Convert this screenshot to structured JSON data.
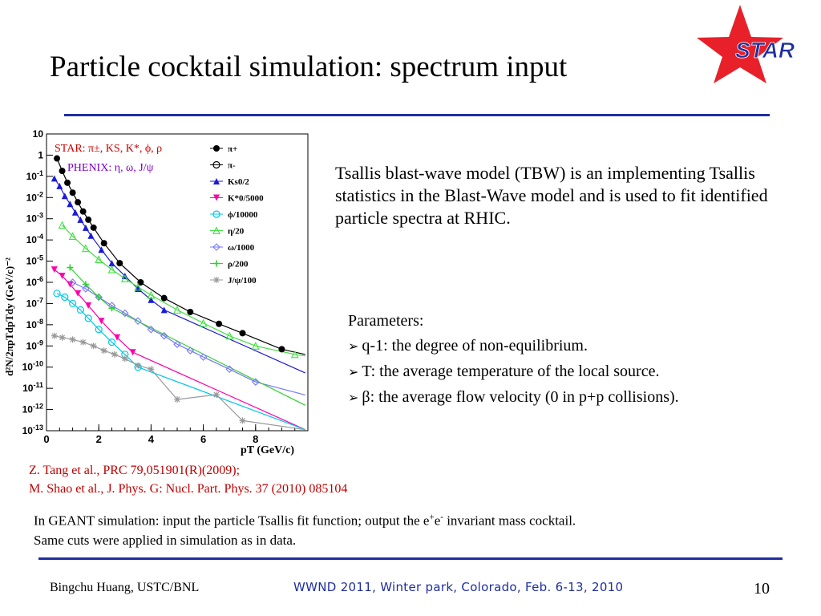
{
  "slide": {
    "title": "Particle cocktail simulation: spectrum input",
    "logo_text": "STAR",
    "description": "Tsallis blast-wave model (TBW) is an implementing Tsallis statistics in the Blast-Wave model and is used to fit identified particle spectra at RHIC.",
    "parameters_heading": "Parameters:",
    "parameters": [
      "q-1: the degree of non-equilibrium.",
      "T: the average temperature of the local source.",
      "β: the average flow velocity (0 in p+p collisions)."
    ],
    "references": [
      "Z. Tang et al., PRC 79,051901(R)(2009);",
      "M. Shao et al.,  J. Phys. G: Nucl. Part. Phys. 37 (2010) 085104"
    ],
    "note_line1_a": "In GEANT simulation: input  the particle Tsallis fit function; output the e",
    "note_line1_sup1": "+",
    "note_line1_b": "e",
    "note_line1_sup2": "-",
    "note_line1_c": "  invariant mass cocktail.",
    "note_line2": "Same cuts were applied in simulation as in data.",
    "footer_author": "Bingchu Huang, USTC/BNL",
    "footer_conference": "WWND 2011, Winter park, Colorado, Feb. 6-13, 2010",
    "page_number": "10",
    "colors": {
      "rule": "#1f2e9e",
      "reference": "#c00000",
      "star_red": "#e8202a",
      "star_text": "#1f2e9e"
    }
  },
  "chart_data": {
    "type": "scatter",
    "title": "",
    "xlabel": "pT (GeV/c)",
    "ylabel": "d²N/2πpTdpTdy  (GeV/c)⁻²",
    "xlim": [
      0,
      10
    ],
    "ylim_log10": [
      -13,
      1
    ],
    "log_y": true,
    "x_ticks": [
      "0",
      "2",
      "4",
      "6",
      "8"
    ],
    "y_ticks": [
      "10",
      "1",
      "10-1",
      "10-2",
      "10-3",
      "10-4",
      "10-5",
      "10-6",
      "10-7",
      "10-8",
      "10-9",
      "10-10",
      "10-11",
      "10-12",
      "10-13"
    ],
    "annotations": [
      "STAR: π±, KS, K*, ϕ, ρ",
      "PHENIX: η, ω, J/ψ"
    ],
    "legend_position": "top-right",
    "series": [
      {
        "name": "π+",
        "color": "#000000",
        "marker": "filled-circle",
        "x": [
          0.4,
          0.6,
          0.8,
          1.0,
          1.2,
          1.4,
          1.6,
          1.8,
          2.2,
          2.8,
          3.6,
          4.5,
          5.5,
          6.6,
          7.5,
          9.0
        ],
        "y": [
          0.7,
          0.18,
          0.05,
          0.017,
          0.006,
          0.0022,
          0.0009,
          0.00038,
          7e-05,
          8e-06,
          1e-06,
          1.8e-07,
          4e-08,
          1.1e-08,
          4e-09,
          7e-10
        ]
      },
      {
        "name": "Ks0/2",
        "color": "#1a1ad6",
        "marker": "filled-triangle",
        "x": [
          0.3,
          0.5,
          0.7,
          0.9,
          1.1,
          1.3,
          1.5,
          1.7,
          2.1,
          2.5,
          3.0,
          3.5,
          4.0,
          4.5
        ],
        "y": [
          0.08,
          0.035,
          0.012,
          0.005,
          0.002,
          0.0009,
          0.00038,
          0.00016,
          3.5e-05,
          8e-06,
          2e-06,
          5e-07,
          1.5e-07,
          5e-08
        ]
      },
      {
        "name": "K*0/5000",
        "color": "#ff00aa",
        "marker": "filled-triangle-down",
        "x": [
          0.3,
          0.6,
          0.9,
          1.2,
          1.6,
          2.1,
          2.7,
          3.3
        ],
        "y": [
          4e-06,
          2e-06,
          8e-07,
          3e-07,
          8e-08,
          1.5e-08,
          2.5e-09,
          5e-10
        ]
      },
      {
        "name": "ϕ/10000",
        "color": "#00c8e8",
        "marker": "open-circle",
        "x": [
          0.4,
          0.7,
          1.0,
          1.3,
          1.6,
          2.0,
          2.5,
          3.0,
          3.5
        ],
        "y": [
          3e-07,
          2e-07,
          1e-07,
          5e-08,
          2e-08,
          6e-09,
          1.5e-09,
          4e-10,
          1e-10
        ]
      },
      {
        "name": "η/20",
        "color": "#40e040",
        "marker": "open-triangle",
        "x": [
          0.6,
          1.0,
          1.5,
          2.0,
          2.5,
          3.0,
          3.5,
          4.0,
          5.0,
          6.0,
          7.0,
          8.0,
          9.5
        ],
        "y": [
          0.0005,
          0.00015,
          4e-05,
          1.2e-05,
          4e-06,
          1.5e-06,
          6e-07,
          2.5e-07,
          5e-08,
          1.2e-08,
          3e-09,
          1e-09,
          4e-10
        ]
      },
      {
        "name": "ω/1000",
        "color": "#7777ff",
        "marker": "open-diamond",
        "x": [
          1.0,
          1.5,
          2.0,
          2.5,
          3.0,
          3.5,
          4.0,
          4.5,
          5.0,
          5.5,
          6.0,
          7.0,
          8.0
        ],
        "y": [
          1e-06,
          5e-07,
          2e-07,
          8e-08,
          3.5e-08,
          1.5e-08,
          6e-09,
          3e-09,
          1.2e-09,
          6e-10,
          3e-10,
          8e-11,
          2e-11
        ]
      },
      {
        "name": "ρ/200",
        "color": "#30d030",
        "marker": "open-cross",
        "x": [
          0.9,
          1.5,
          2.0,
          2.5
        ],
        "y": [
          5e-06,
          8e-07,
          2e-07,
          6e-08
        ]
      },
      {
        "name": "J/ψ/100",
        "color": "#999999",
        "marker": "star",
        "x": [
          0.3,
          0.6,
          1.0,
          1.4,
          1.8,
          2.2,
          2.6,
          3.0,
          3.5,
          4.0,
          5.0,
          6.5,
          7.5
        ],
        "y": [
          3e-09,
          2.5e-09,
          2e-09,
          1.5e-09,
          1e-09,
          6e-10,
          4e-10,
          2.5e-10,
          1.2e-10,
          8e-11,
          3e-12,
          5e-12,
          3e-13
        ]
      }
    ]
  }
}
